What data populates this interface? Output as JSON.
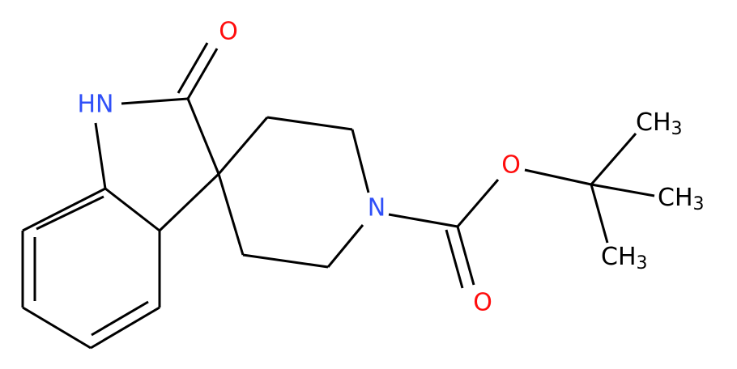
{
  "atoms": [
    {
      "label": "O"
    },
    {
      "label": "HN"
    },
    {
      "label": "N"
    },
    {
      "label": "O"
    },
    {
      "label": "O"
    },
    {
      "label": "CH",
      "sub": "3"
    },
    {
      "label": "CH",
      "sub": "3"
    },
    {
      "label": "CH",
      "sub": "3"
    }
  ]
}
